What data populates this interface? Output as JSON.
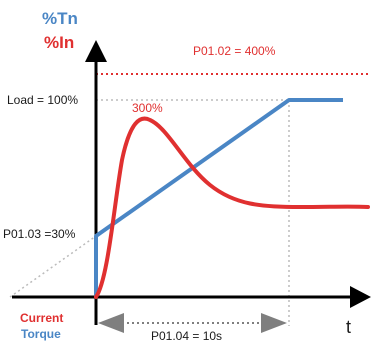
{
  "axis_labels": {
    "y_torque": "%Tn",
    "y_current": "%In",
    "x_time": "t"
  },
  "annotations": {
    "current_limit": "P01.02 = 400%",
    "load_level": "Load = 100%",
    "current_peak": "300%",
    "start_torque": "P01.03 =30%",
    "ramp_time": "P01.04 = 10s"
  },
  "legend": {
    "current": "Current",
    "torque": "Torque"
  },
  "colors": {
    "current": "#e03030",
    "torque": "#4a86c5",
    "axis": "#000000",
    "guide": "#bbbbbb"
  }
}
